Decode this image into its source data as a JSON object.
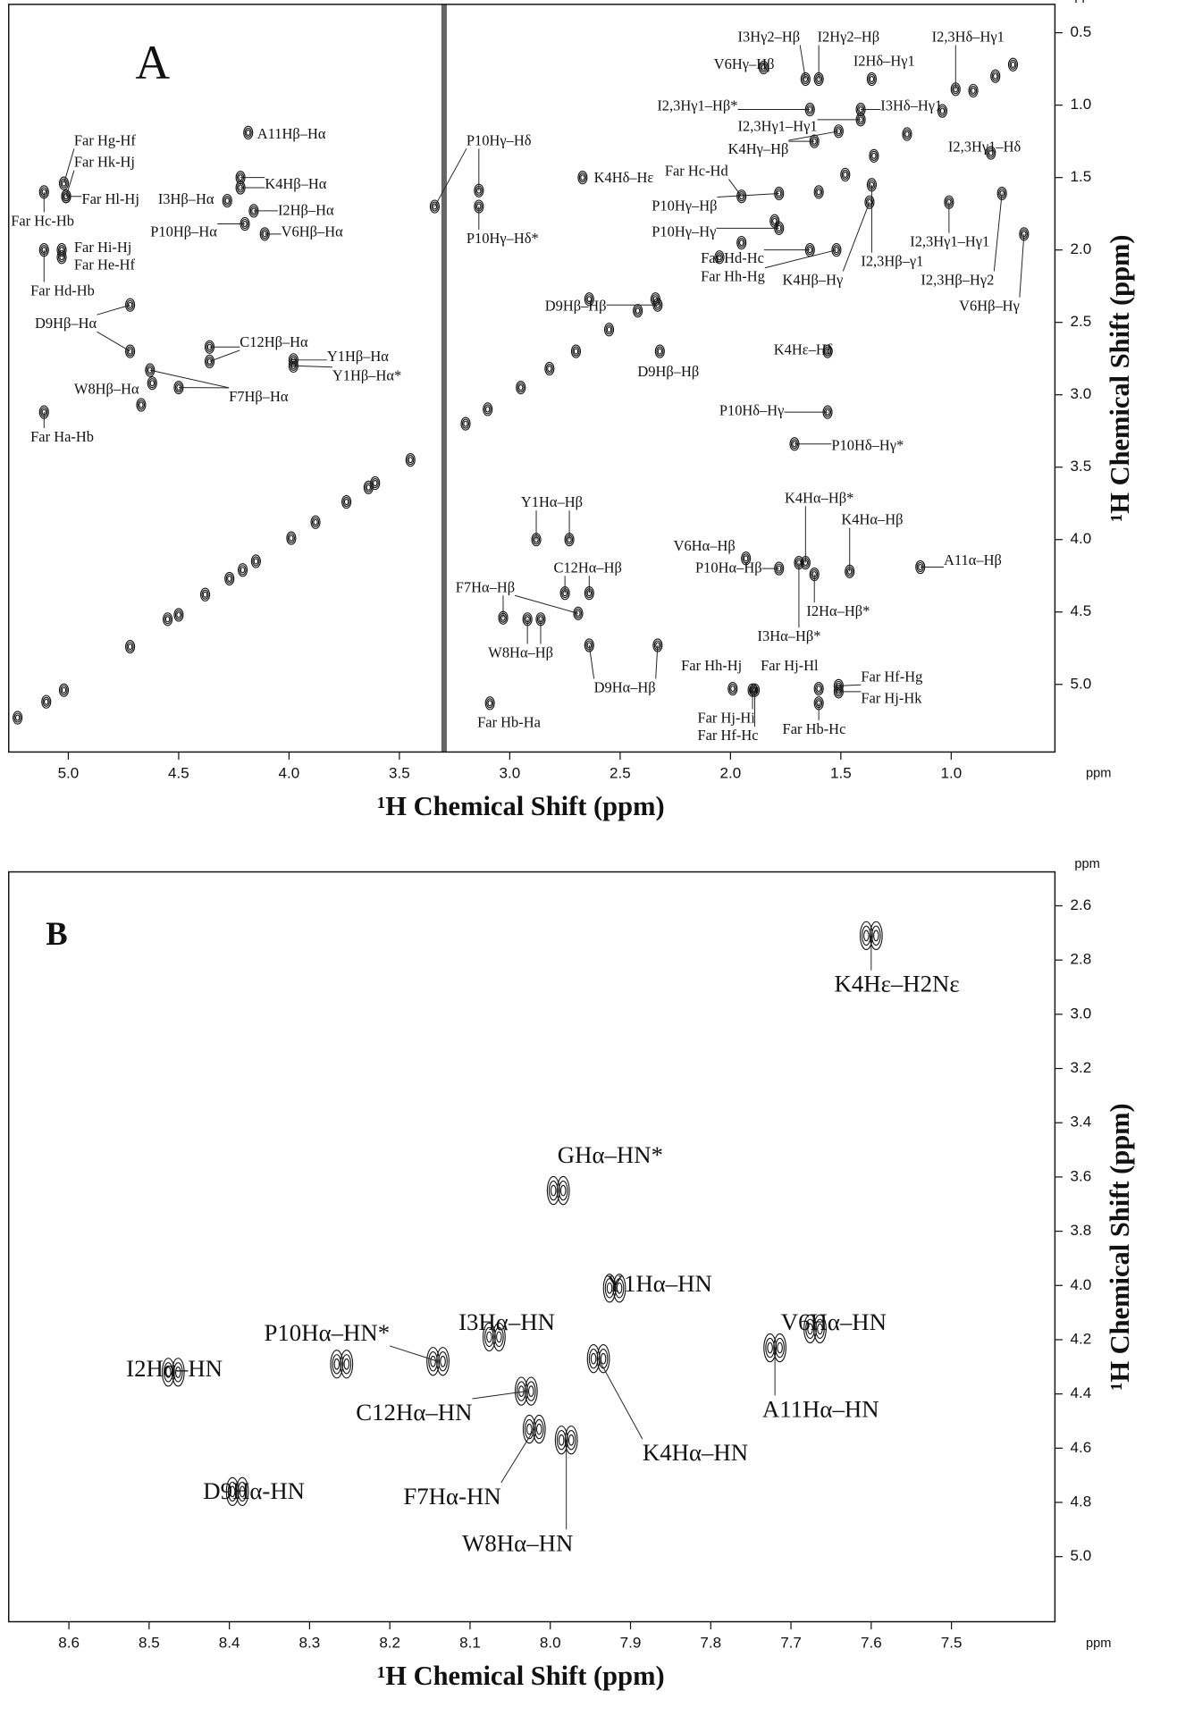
{
  "chart_data": [
    {
      "type": "scatter",
      "panel": "A",
      "xlabel": "¹H Chemical Shift (ppm)",
      "ylabel": "¹H Chemical Shift (ppm)",
      "x_unit": "ppm",
      "y_unit": "ppm",
      "xlim": [
        5.27,
        0.53
      ],
      "ylim": [
        5.467,
        0.304
      ],
      "xticks": [
        {
          "value": 5,
          "label": "5.0"
        },
        4.5,
        {
          "value": 4,
          "label": "4.0"
        },
        3.5,
        {
          "value": 3,
          "label": "3.0"
        },
        2.5,
        {
          "value": 2,
          "label": "2.0"
        },
        1.5,
        {
          "value": 1,
          "label": "1.0"
        }
      ],
      "yticks": [
        0.5,
        {
          "value": 1,
          "label": "1.0"
        },
        1.5,
        {
          "value": 2,
          "label": "2.0"
        },
        2.5,
        {
          "value": 3,
          "label": "3.0"
        },
        3.5,
        {
          "value": 4,
          "label": "4.0"
        },
        4.5,
        {
          "value": 5,
          "label": "5.0"
        }
      ],
      "x": [
        5.23,
        5.1,
        5.02,
        4.72,
        4.55,
        4.5,
        4.38,
        4.27,
        4.21,
        4.15,
        3.99,
        3.88,
        3.74,
        3.64,
        3.61,
        3.45,
        3.2,
        3.1,
        2.95,
        2.82,
        2.7,
        2.55,
        2.42,
        2.34,
        2.05,
        1.95,
        1.8,
        1.6,
        1.48,
        1.35,
        1.2,
        1.04,
        0.9,
        0.8,
        0.72
      ],
      "values": [
        5.23,
        5.12,
        5.04,
        4.74,
        4.55,
        4.52,
        4.38,
        4.27,
        4.21,
        4.15,
        3.99,
        3.88,
        3.74,
        3.64,
        3.61,
        3.45,
        3.2,
        3.1,
        2.95,
        2.82,
        2.7,
        2.55,
        2.42,
        2.34,
        2.05,
        1.95,
        1.8,
        1.6,
        1.48,
        1.35,
        1.2,
        1.04,
        0.9,
        0.8,
        0.72
      ],
      "annotations": [
        {
          "text": "A11Hβ–Hα",
          "x": [
            4.185
          ],
          "y": [
            1.19
          ]
        },
        {
          "text": "K4Hβ–Hα",
          "x": [
            4.22,
            4.22
          ],
          "y": [
            1.5,
            1.57
          ]
        },
        {
          "text": "I3Hβ–Hα",
          "x": [
            4.28
          ],
          "y": [
            1.66
          ]
        },
        {
          "text": "I2Hβ–Hα",
          "x": [
            4.16
          ],
          "y": [
            1.73
          ]
        },
        {
          "text": "P10Hβ–Hα",
          "x": [
            4.2
          ],
          "y": [
            1.82
          ]
        },
        {
          "text": "V6Hβ–Hα",
          "x": [
            4.11
          ],
          "y": [
            1.89
          ]
        },
        {
          "text": "Far Hg-Hf",
          "x": [
            5.02
          ],
          "y": [
            1.54
          ]
        },
        {
          "text": "Far Hk-Hj",
          "x": [
            5.01
          ],
          "y": [
            1.63
          ]
        },
        {
          "text": "Far Hl-Hj",
          "x": [
            5.01
          ],
          "y": [
            1.63
          ]
        },
        {
          "text": "Far Hc-Hb",
          "x": [
            5.11
          ],
          "y": [
            1.6
          ]
        },
        {
          "text": "Far Hi-Hj",
          "x": [
            5.03
          ],
          "y": [
            2.0
          ]
        },
        {
          "text": "Far He-Hf",
          "x": [
            5.03
          ],
          "y": [
            2.05
          ]
        },
        {
          "text": "Far Hd-Hb",
          "x": [
            5.11
          ],
          "y": [
            2.0
          ]
        },
        {
          "text": "D9Hβ–Hα",
          "x": [
            4.72,
            4.72
          ],
          "y": [
            2.38,
            2.7
          ]
        },
        {
          "text": "C12Hβ–Hα",
          "x": [
            4.36,
            4.36
          ],
          "y": [
            2.67,
            2.77
          ]
        },
        {
          "text": "Y1Hβ–Hα",
          "x": [
            3.98
          ],
          "y": [
            2.76
          ]
        },
        {
          "text": "Y1Hβ–Hα*",
          "x": [
            3.98
          ],
          "y": [
            2.8
          ]
        },
        {
          "text": "W8Hβ–Hα",
          "x": [
            4.62,
            4.67
          ],
          "y": [
            2.92,
            3.07
          ]
        },
        {
          "text": "F7Hβ–Hα",
          "x": [
            4.5,
            4.63
          ],
          "y": [
            2.95,
            2.83
          ]
        },
        {
          "text": "Far Ha-Hb",
          "x": [
            5.11
          ],
          "y": [
            3.12
          ]
        },
        {
          "text": "P10Hγ–Hδ",
          "x": [
            3.14,
            3.34
          ],
          "y": [
            1.59,
            1.7
          ]
        },
        {
          "text": "P10Hγ–Hδ*",
          "x": [
            3.14
          ],
          "y": [
            1.7
          ]
        },
        {
          "text": "D9Hβ–Hβ",
          "x": [
            2.64,
            2.33
          ],
          "y": [
            2.34,
            2.38
          ]
        },
        {
          "text": "D9Hβ–Hβ",
          "x": [
            2.32
          ],
          "y": [
            2.7
          ]
        },
        {
          "text": "K4Hδ–Hε",
          "x": [
            2.67
          ],
          "y": [
            1.5
          ]
        },
        {
          "text": "Y1Hα–Hβ",
          "x": [
            2.88,
            2.73
          ],
          "y": [
            4.0,
            4.0
          ]
        },
        {
          "text": "C12Hα–Hβ",
          "x": [
            2.75,
            2.64
          ],
          "y": [
            4.37,
            4.37
          ]
        },
        {
          "text": "F7Hα–Hβ",
          "x": [
            3.03,
            2.69
          ],
          "y": [
            4.54,
            4.51
          ]
        },
        {
          "text": "W8Hα–Hβ",
          "x": [
            2.92,
            2.86
          ],
          "y": [
            4.55,
            4.55
          ]
        },
        {
          "text": "D9Hα–Hβ",
          "x": [
            2.64,
            2.33
          ],
          "y": [
            4.73,
            4.73
          ]
        },
        {
          "text": "Far Hb-Ha",
          "x": [
            3.09
          ],
          "y": [
            5.13
          ]
        },
        {
          "text": "I3Hγ2–Hβ",
          "x": [
            1.66
          ],
          "y": [
            0.82
          ]
        },
        {
          "text": "I2Hγ2–Hβ",
          "x": [
            1.6
          ],
          "y": [
            0.82
          ]
        },
        {
          "text": "I2,3Hδ–Hγ1",
          "x": [
            0.98
          ],
          "y": [
            0.89
          ]
        },
        {
          "text": "V6Hγ–Hβ",
          "x": [
            1.85
          ],
          "y": [
            0.74
          ]
        },
        {
          "text": "I2Hδ–Hγ1",
          "x": [
            1.36
          ],
          "y": [
            0.82
          ]
        },
        {
          "text": "I2,3Hγ1–Hβ*",
          "x": [
            1.64
          ],
          "y": [
            1.03
          ]
        },
        {
          "text": "I3Hδ–Hγ1",
          "x": [
            1.41
          ],
          "y": [
            1.03
          ]
        },
        {
          "text": "I2,3Hγ1–Hγ1",
          "x": [
            1.41
          ],
          "y": [
            1.1
          ]
        },
        {
          "text": "K4Hγ–Hβ",
          "x": [
            1.62,
            1.51
          ],
          "y": [
            1.25,
            1.18
          ]
        },
        {
          "text": "Far Hc-Hd",
          "x": [
            1.95
          ],
          "y": [
            1.63
          ]
        },
        {
          "text": "I2,3Hγ1–Hδ",
          "x": [
            0.82
          ],
          "y": [
            1.33
          ]
        },
        {
          "text": "P10Hγ–Hβ",
          "x": [
            1.78
          ],
          "y": [
            1.61
          ]
        },
        {
          "text": "P10Hγ–Hγ",
          "x": [
            1.78
          ],
          "y": [
            1.85
          ]
        },
        {
          "text": "I2,3Hγ1–Hγ1",
          "x": [
            1.01
          ],
          "y": [
            1.67
          ]
        },
        {
          "text": "I2,3Hβ–γ1",
          "x": [
            1.36
          ],
          "y": [
            1.55
          ]
        },
        {
          "text": "I2,3Hβ–Hγ2",
          "x": [
            0.77
          ],
          "y": [
            1.61
          ]
        },
        {
          "text": "Far Hd-Hc",
          "x": [
            1.64
          ],
          "y": [
            2.0
          ]
        },
        {
          "text": "Far Hh-Hg",
          "x": [
            1.52
          ],
          "y": [
            2.0
          ]
        },
        {
          "text": "K4Hβ–Hγ",
          "x": [
            1.37
          ],
          "y": [
            1.67
          ]
        },
        {
          "text": "V6Hβ–Hγ",
          "x": [
            0.67
          ],
          "y": [
            1.89
          ]
        },
        {
          "text": "K4Hε–Hδ",
          "x": [
            1.56
          ],
          "y": [
            2.7
          ]
        },
        {
          "text": "P10Hδ–Hγ",
          "x": [
            1.56
          ],
          "y": [
            3.12
          ]
        },
        {
          "text": "P10Hδ–Hγ*",
          "x": [
            1.71
          ],
          "y": [
            3.34
          ]
        },
        {
          "text": "K4Hα–Hβ*",
          "x": [
            1.66
          ],
          "y": [
            4.16
          ]
        },
        {
          "text": "K4Hα–Hβ",
          "x": [
            1.46
          ],
          "y": [
            4.22
          ]
        },
        {
          "text": "V6Hα–Hβ",
          "x": [
            1.93
          ],
          "y": [
            4.13
          ]
        },
        {
          "text": "A11α–Hβ",
          "x": [
            1.14
          ],
          "y": [
            4.19
          ]
        },
        {
          "text": "P10Hα–Hβ",
          "x": [
            1.78
          ],
          "y": [
            4.2
          ]
        },
        {
          "text": "I2Hα–Hβ*",
          "x": [
            1.62
          ],
          "y": [
            4.24
          ]
        },
        {
          "text": "I3Hα–Hβ*",
          "x": [
            1.69
          ],
          "y": [
            4.16
          ]
        },
        {
          "text": "Far Hh-Hj",
          "x": [
            1.99
          ],
          "y": [
            5.03
          ]
        },
        {
          "text": "Far Hj-Hl",
          "x": [
            1.6
          ],
          "y": [
            5.03
          ]
        },
        {
          "text": "Far Hf-Hg",
          "x": [
            1.51
          ],
          "y": [
            5.01
          ]
        },
        {
          "text": "Far Hj-Hk",
          "x": [
            1.51
          ],
          "y": [
            5.05
          ]
        },
        {
          "text": "Far Hj-Hi",
          "x": [
            1.9
          ],
          "y": [
            5.04
          ]
        },
        {
          "text": "Far Hf-Hc",
          "x": [
            1.89
          ],
          "y": [
            5.04
          ]
        },
        {
          "text": "Far Hb-Hc",
          "x": [
            1.6
          ],
          "y": [
            5.13
          ]
        }
      ]
    },
    {
      "type": "scatter",
      "panel": "B",
      "xlabel": "¹H Chemical Shift (ppm)",
      "ylabel": "¹H Chemical Shift (ppm)",
      "x_unit": "ppm",
      "y_unit": "ppm",
      "xlim": [
        8.675,
        7.371
      ],
      "ylim": [
        5.24,
        2.475
      ],
      "xticks": [
        8.6,
        8.5,
        8.4,
        8.3,
        8.2,
        8.1,
        {
          "value": 8,
          "label": "8.0"
        },
        7.9,
        7.8,
        7.7,
        7.6,
        7.5
      ],
      "yticks": [
        2.6,
        2.8,
        {
          "value": 3,
          "label": "3.0"
        },
        3.2,
        3.4,
        3.6,
        3.8,
        {
          "value": 4,
          "label": "4.0"
        },
        4.2,
        4.4,
        4.6,
        4.8,
        {
          "value": 5,
          "label": "5.0"
        }
      ],
      "annotations": [
        {
          "text": "K4Hε–H2Nε",
          "x": [
            7.6
          ],
          "y": [
            2.71
          ]
        },
        {
          "text": "GHα–HN*",
          "x": [
            7.99
          ],
          "y": [
            3.65
          ]
        },
        {
          "text": "Y1Hα–HN",
          "x": [
            7.92
          ],
          "y": [
            4.01
          ]
        },
        {
          "text": "I3Hα–HN",
          "x": [
            8.07
          ],
          "y": [
            4.19
          ]
        },
        {
          "text": "V6Hα–HN",
          "x": [
            7.67
          ],
          "y": [
            4.16
          ]
        },
        {
          "text": "A11Hα–HN",
          "x": [
            7.72
          ],
          "y": [
            4.23
          ]
        },
        {
          "text": "K4Hα–HN",
          "x": [
            7.94
          ],
          "y": [
            4.27
          ]
        },
        {
          "text": "P10Hα–HN*",
          "x": [
            8.26,
            8.14
          ],
          "y": [
            4.29,
            4.28
          ]
        },
        {
          "text": "I2Hα–HN",
          "x": [
            8.47
          ],
          "y": [
            4.32
          ]
        },
        {
          "text": "C12Hα–HN",
          "x": [
            8.03
          ],
          "y": [
            4.39
          ]
        },
        {
          "text": "F7Hα-HN",
          "x": [
            8.02
          ],
          "y": [
            4.53
          ]
        },
        {
          "text": "W8Hα–HN",
          "x": [
            7.98
          ],
          "y": [
            4.57
          ]
        },
        {
          "text": "D9Hα-HN",
          "x": [
            8.39
          ],
          "y": [
            4.76
          ]
        }
      ]
    }
  ]
}
